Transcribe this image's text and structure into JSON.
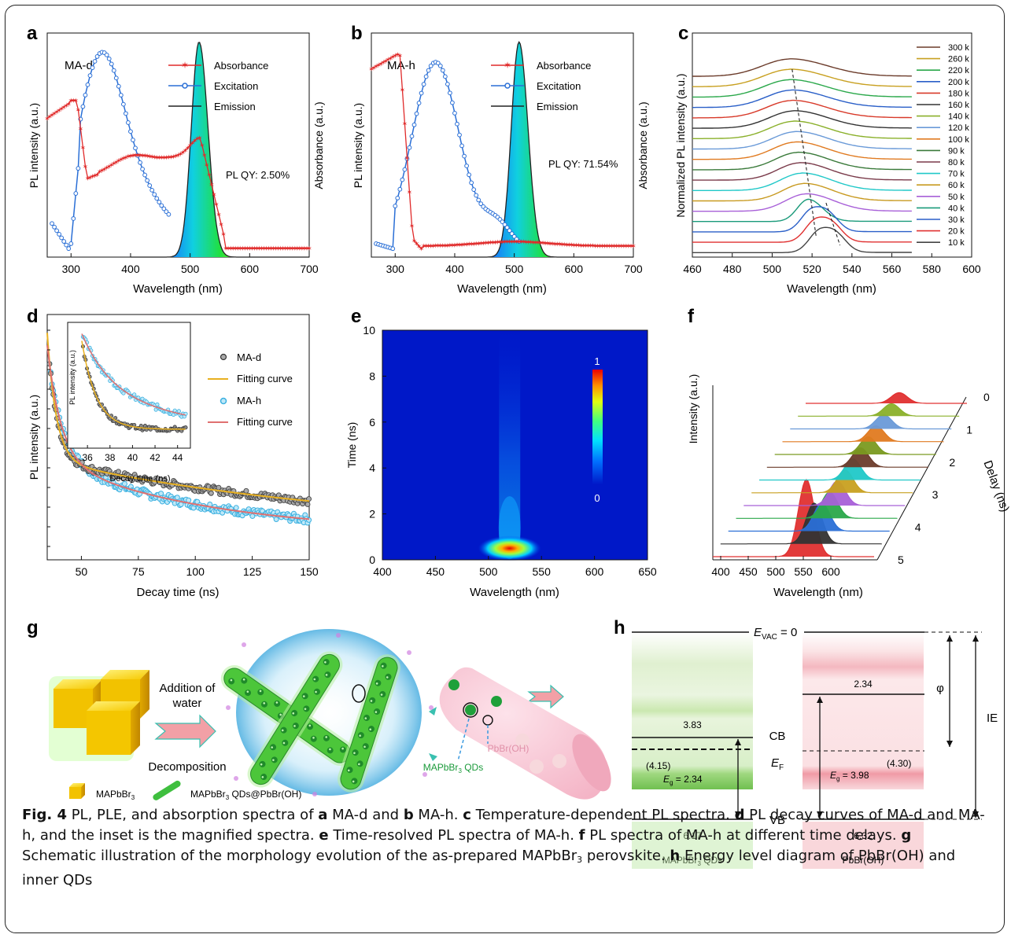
{
  "panels": {
    "a": {
      "letter": "a",
      "label": "MA-d",
      "plqy": "PL QY: 2.50%",
      "ylabel_left": "PL intensity (a.u.)",
      "ylabel_right": "Absorbance (a.u.)",
      "xlabel": "Wavelength (nm)"
    },
    "b": {
      "letter": "b",
      "label": "MA-h",
      "plqy": "PL QY: 71.54%",
      "ylabel_left": "PL intensity (a.u.)",
      "ylabel_right": "Absorbance (a.u.)",
      "xlabel": "Wavelength (nm)"
    },
    "c": {
      "letter": "c",
      "ylabel": "Normalized PL intensity (a.u.)",
      "xlabel": "Wavelength (nm)"
    },
    "d": {
      "letter": "d",
      "ylabel": "PL intensity (a.u.)",
      "xlabel": "Decay time (ns)",
      "inset_ylabel": "PL intensity (a.u.)",
      "inset_xlabel": "Decay time (ns)"
    },
    "e": {
      "letter": "e",
      "ylabel": "Time (ns)",
      "xlabel": "Wavelength (nm)",
      "cb_max": "1",
      "cb_min": "0"
    },
    "f": {
      "letter": "f",
      "ylabel": "Intensity (a.u.)",
      "xlabel": "Wavelength (nm)",
      "zlabel": "Delay (ns)"
    },
    "g": {
      "letter": "g",
      "addition": "Addition of",
      "water": "water",
      "decomposition": "Decomposition",
      "legend_cube": "MAPbBr3",
      "legend_rod": "MAPbBr3 QDs@PbBr(OH)",
      "pbbroh": "PbBr(OH)",
      "qds": "MAPbBr3 QDs"
    },
    "h": {
      "letter": "h",
      "evac": "E",
      "evac_sub": "VAC",
      "evac_tail": " = 0",
      "cb": "CB",
      "vb": "VB",
      "ef": "E",
      "ef_sub": "F",
      "phi": "φ",
      "ie": "IE",
      "left_top": "3.83",
      "left_bottom": "6.17",
      "left_ef": "(4.15)",
      "left_eg": "= 2.34",
      "left_name": "MAPbBr3 QDs",
      "right_top": "2.34",
      "right_bottom": "6.32",
      "right_ef": "(4.30)",
      "right_eg": "= 3.98",
      "right_name": "PbBr(OH)",
      "eg": "E",
      "eg_sub": "g"
    }
  },
  "caption": {
    "fig": "Fig. 4",
    "t1": " PL, PLE, and absorption spectra of ",
    "a": "a",
    "t2": " MA-d and ",
    "b": "b",
    "t3": " MA-h. ",
    "c": "c",
    "t4": " Temperature-dependent PL spectra. ",
    "d": "d",
    "t5": " PL decay curves of MA-d and MA-h, and the inset is the magnified spectra. ",
    "e": "e",
    "t6": " Time-resolved PL spectra of MA-h. ",
    "f": "f",
    "t7": " PL spectra of MA-h at different time delays. ",
    "g": "g",
    "t8": " Schematic illustration of the morphology evolution of the as-prepared MAPbBr",
    "sub3": "3",
    "t9": " perovskite. ",
    "h": "h",
    "t10": " Energy level diagram of PbBr(OH) and inner QDs"
  },
  "chart_data": [
    {
      "panel": "a",
      "type": "line",
      "xlabel": "Wavelength (nm)",
      "xlim": [
        260,
        700
      ],
      "xticks": [
        300,
        400,
        500,
        600,
        700
      ],
      "series": [
        {
          "name": "Absorbance",
          "color": "#e02a2a"
        },
        {
          "name": "Excitation",
          "color": "#2a6fd6"
        },
        {
          "name": "Emission",
          "color": "#222222"
        }
      ],
      "emission_peak": 515
    },
    {
      "panel": "b",
      "type": "line",
      "xlabel": "Wavelength (nm)",
      "xlim": [
        260,
        700
      ],
      "xticks": [
        300,
        400,
        500,
        600,
        700
      ],
      "series": [
        {
          "name": "Absorbance",
          "color": "#e02a2a"
        },
        {
          "name": "Excitation",
          "color": "#2a6fd6"
        },
        {
          "name": "Emission",
          "color": "#222222"
        }
      ],
      "emission_peak": 508
    },
    {
      "panel": "c",
      "type": "line",
      "xlabel": "Wavelength (nm)",
      "xlim": [
        460,
        600
      ],
      "xticks": [
        460,
        480,
        500,
        520,
        540,
        560,
        580,
        600
      ],
      "series": [
        {
          "name": "300 k",
          "color": "#6b3b2a",
          "peak": 509
        },
        {
          "name": "260 k",
          "color": "#c8a020",
          "peak": 509
        },
        {
          "name": "220 k",
          "color": "#2aa84a",
          "peak": 509
        },
        {
          "name": "200 k",
          "color": "#2a5fc8",
          "peak": 510
        },
        {
          "name": "180 k",
          "color": "#d83a2a",
          "peak": 510
        },
        {
          "name": "160 k",
          "color": "#333333",
          "peak": 511
        },
        {
          "name": "140 k",
          "color": "#8ab02a",
          "peak": 511
        },
        {
          "name": "120 k",
          "color": "#6a9ad8",
          "peak": 512
        },
        {
          "name": "100 k",
          "color": "#e07a20",
          "peak": 512
        },
        {
          "name": "90 k",
          "color": "#3a7a3a",
          "peak": 513
        },
        {
          "name": "80 k",
          "color": "#7a3a4a",
          "peak": 514
        },
        {
          "name": "70 k",
          "color": "#20c8c8",
          "peak": 515
        },
        {
          "name": "60 k",
          "color": "#c89a20",
          "peak": 516
        },
        {
          "name": "50 k",
          "color": "#a860d8",
          "peak": 517
        },
        {
          "name": "40 k",
          "color": "#1a9a7a",
          "peak": 518
        },
        {
          "name": "30 k",
          "color": "#2a5fc8",
          "peak": 520
        },
        {
          "name": "20 k",
          "color": "#e03030",
          "peak": 522
        },
        {
          "name": "10 k",
          "color": "#444444",
          "peak": 524
        }
      ]
    },
    {
      "panel": "d",
      "type": "scatter",
      "xlabel": "Decay time (ns)",
      "xlim": [
        35,
        150
      ],
      "xticks": [
        50,
        75,
        100,
        125,
        150
      ],
      "series": [
        {
          "name": "MA-d",
          "color": "#444444"
        },
        {
          "name": "Fitting curve",
          "color": "#e8b020"
        },
        {
          "name": "MA-h",
          "color": "#3ab0e0"
        },
        {
          "name": "Fitting curve",
          "color": "#e07070"
        }
      ],
      "inset": {
        "xlim": [
          35.5,
          45
        ],
        "xticks": [
          36,
          38,
          40,
          42,
          44
        ]
      }
    },
    {
      "panel": "e",
      "type": "heatmap",
      "xlabel": "Wavelength (nm)",
      "ylabel": "Time (ns)",
      "xlim": [
        400,
        650
      ],
      "ylim": [
        0,
        10
      ],
      "xticks": [
        400,
        450,
        500,
        550,
        600,
        650
      ],
      "yticks": [
        0,
        2,
        4,
        6,
        8,
        10
      ],
      "peak": {
        "x": 520,
        "y": 0.5
      },
      "colorbar": [
        0,
        1
      ]
    },
    {
      "panel": "f",
      "type": "line",
      "xlabel": "Wavelength (nm)",
      "xticks": [
        400,
        450,
        500,
        550,
        600
      ],
      "zticks": [
        0,
        1,
        2,
        3,
        4,
        5
      ],
      "series_colors": [
        "#e03030",
        "#333333",
        "#2a6fd6",
        "#2aa84a",
        "#a860d8",
        "#c8a020",
        "#20c8c8",
        "#6b3b2a",
        "#7a9a20",
        "#e07a20",
        "#6a9ad8",
        "#8ab02a",
        "#e03030"
      ]
    }
  ]
}
